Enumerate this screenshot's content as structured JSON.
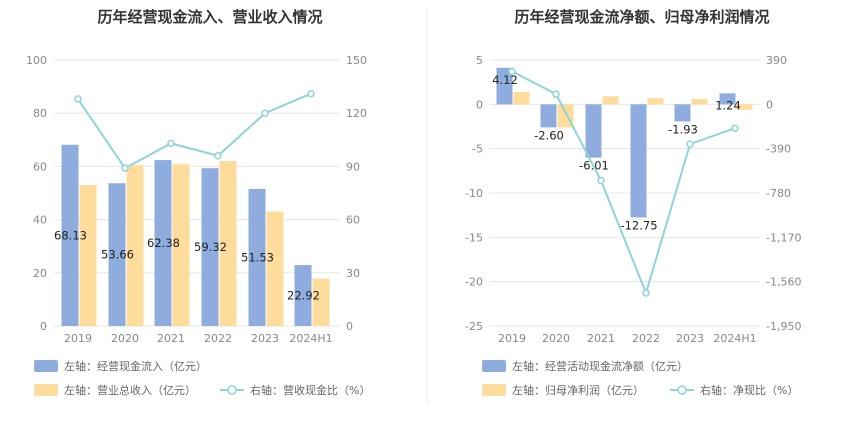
{
  "charts": [
    {
      "title": "历年经营现金流入、营业收入情况",
      "legend": [
        {
          "label": "左轴：经营现金流入（亿元）",
          "kind": "bar",
          "color": "#8eadde"
        },
        {
          "label": "左轴：营业总收入（亿元）",
          "kind": "bar",
          "color": "#fedc9c"
        },
        {
          "label": "右轴：营收现金比（%）",
          "kind": "line",
          "color": "#8ed4d8"
        }
      ]
    },
    {
      "title": "历年经营现金流净额、归母净利润情况",
      "legend": [
        {
          "label": "左轴：经营活动现金流净额（亿元）",
          "kind": "bar",
          "color": "#8eadde"
        },
        {
          "label": "左轴：归母净利润（亿元）",
          "kind": "bar",
          "color": "#fedc9c"
        },
        {
          "label": "右轴：净现比（%）",
          "kind": "line",
          "color": "#8ed4d8"
        }
      ]
    }
  ],
  "chart_data": [
    {
      "type": "bar",
      "title": "历年经营现金流入、营业收入情况",
      "categories": [
        "2019",
        "2020",
        "2021",
        "2022",
        "2023",
        "2024H1"
      ],
      "left_axis": {
        "min": 0,
        "max": 100,
        "ticks": [
          "0",
          "20",
          "40",
          "60",
          "80",
          "100"
        ]
      },
      "right_axis": {
        "min": 0,
        "max": 150,
        "ticks": [
          "0",
          "30",
          "60",
          "90",
          "120",
          "150"
        ]
      },
      "series": [
        {
          "name": "左轴：经营现金流入（亿元）",
          "axis": "left",
          "type": "bar",
          "values": [
            68.13,
            53.66,
            62.38,
            59.32,
            51.53,
            22.92
          ],
          "labels": [
            "68.13",
            "53.66",
            "62.38",
            "59.32",
            "51.53",
            "22.92"
          ],
          "color": "#8eadde"
        },
        {
          "name": "左轴：营业总收入（亿元）",
          "axis": "left",
          "type": "bar",
          "values": [
            53,
            60.5,
            60.8,
            62,
            43,
            17.8
          ],
          "color": "#fedc9c"
        },
        {
          "name": "右轴：营收现金比（%）",
          "axis": "right",
          "type": "line",
          "values": [
            128,
            89,
            103,
            96,
            120,
            131
          ],
          "color": "#8ed4d8"
        }
      ]
    },
    {
      "type": "bar",
      "title": "历年经营现金流净额、归母净利润情况",
      "categories": [
        "2019",
        "2020",
        "2021",
        "2022",
        "2023",
        "2024H1"
      ],
      "left_axis": {
        "min": -25,
        "max": 5,
        "ticks": [
          "-25",
          "-20",
          "-15",
          "-10",
          "-5",
          "0",
          "5"
        ]
      },
      "right_axis": {
        "min": -1950,
        "max": 390,
        "ticks": [
          "-1,950",
          "-1,560",
          "-1,170",
          "-780",
          "-390",
          "0",
          "390"
        ]
      },
      "series": [
        {
          "name": "左轴：经营活动现金流净额（亿元）",
          "axis": "left",
          "type": "bar",
          "values": [
            4.12,
            -2.6,
            -6.01,
            -12.75,
            -1.93,
            1.24
          ],
          "labels": [
            "4.12",
            "-2.60",
            "-6.01",
            "-12.75",
            "-1.93",
            "1.24"
          ],
          "color": "#8eadde"
        },
        {
          "name": "左轴：归母净利润（亿元）",
          "axis": "left",
          "type": "bar",
          "values": [
            1.4,
            -2.6,
            0.9,
            0.7,
            0.6,
            -0.6
          ],
          "color": "#fedc9c"
        },
        {
          "name": "右轴：净现比（%）",
          "axis": "right",
          "type": "line",
          "values": [
            290,
            90,
            -670,
            -1660,
            -350,
            -210
          ],
          "color": "#8ed4d8"
        }
      ]
    }
  ]
}
